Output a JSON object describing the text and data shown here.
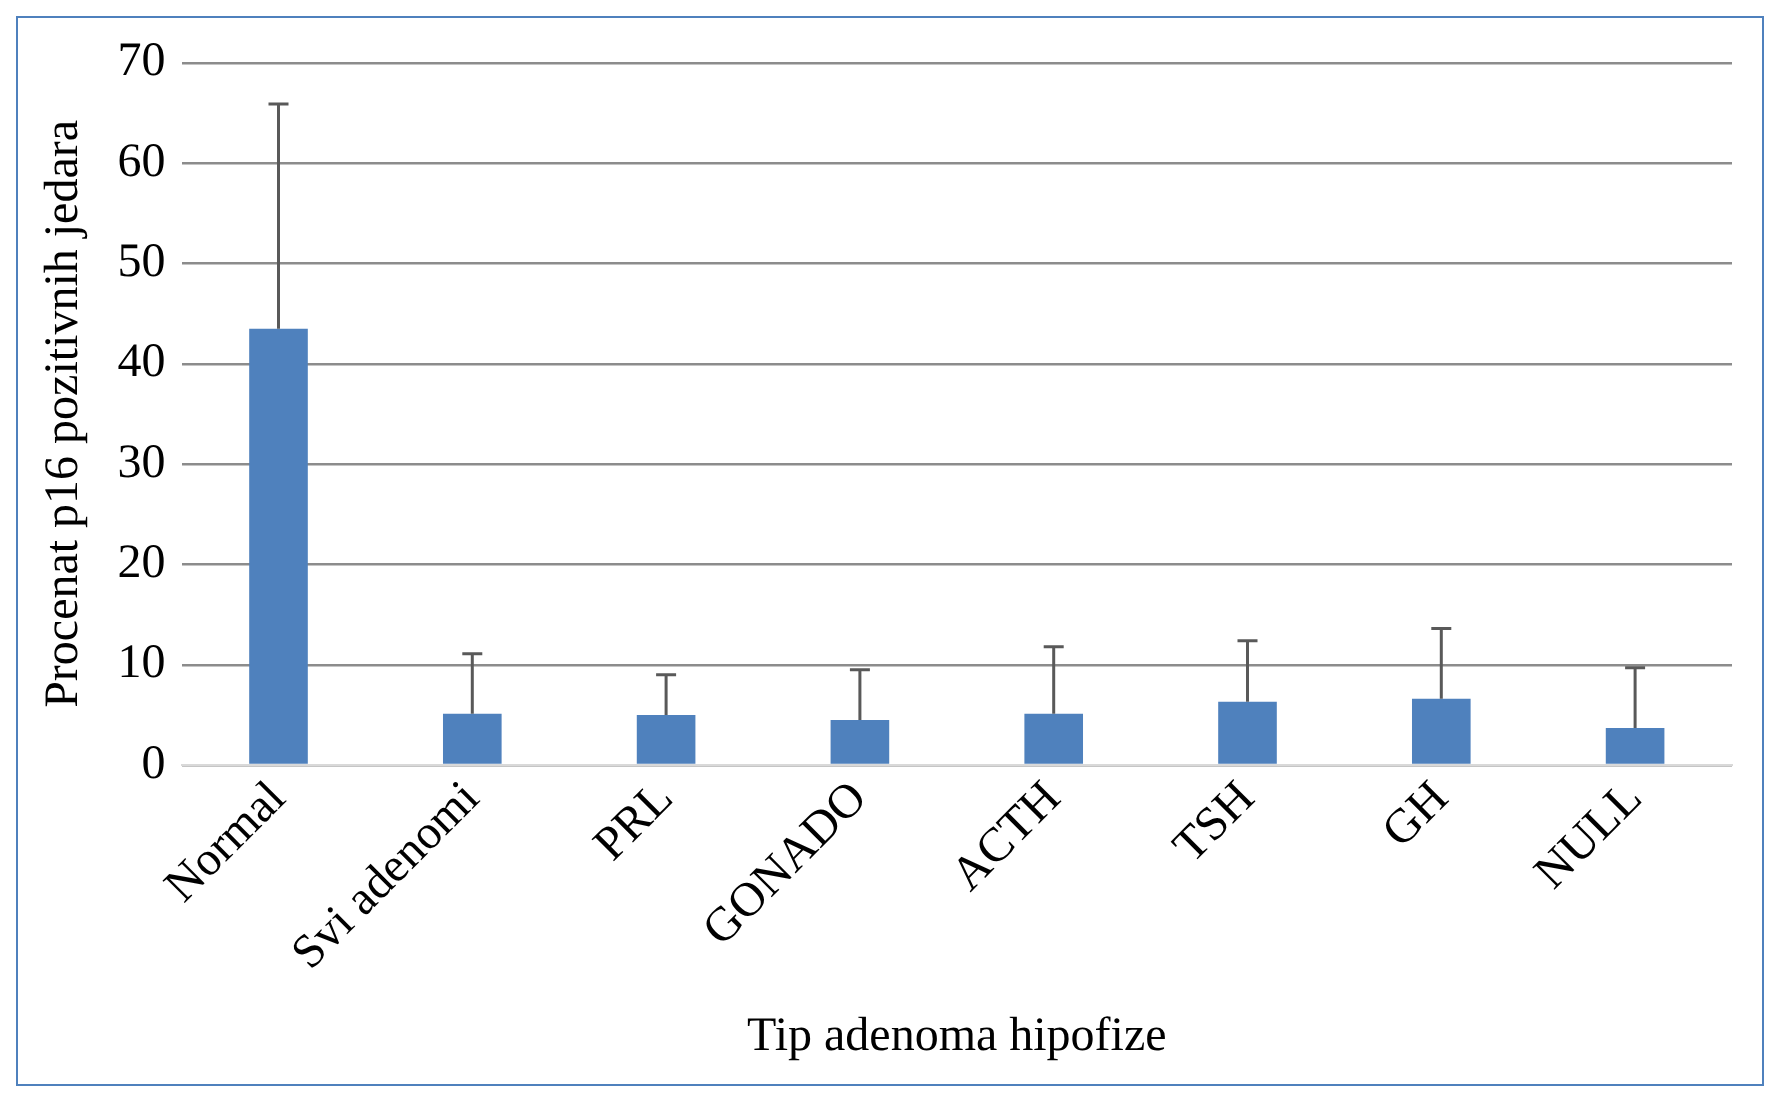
{
  "chart_data": {
    "type": "bar",
    "xlabel": "Tip adenoma hipofize",
    "ylabel": "Procenat p16 pozitivnih jedara",
    "categories": [
      "Normal",
      "Svi adenomi",
      "PRL",
      "GONADO",
      "ACTH",
      "TSH",
      "GH",
      "NULL"
    ],
    "values": [
      43.5,
      5.1,
      5.0,
      4.5,
      5.1,
      6.3,
      6.6,
      3.7
    ],
    "errors": [
      [
        43.5,
        65.9
      ],
      [
        5.1,
        11.1
      ],
      [
        5.0,
        9.0
      ],
      [
        4.5,
        9.5
      ],
      [
        5.1,
        11.8
      ],
      [
        6.3,
        12.4
      ],
      [
        6.6,
        13.6
      ],
      [
        3.7,
        9.7
      ]
    ],
    "color": "#4f81bd",
    "ylim": [
      0,
      70
    ],
    "yticks": [
      0,
      10,
      20,
      30,
      40,
      50,
      60,
      70
    ],
    "grid": "y",
    "legend": false
  }
}
